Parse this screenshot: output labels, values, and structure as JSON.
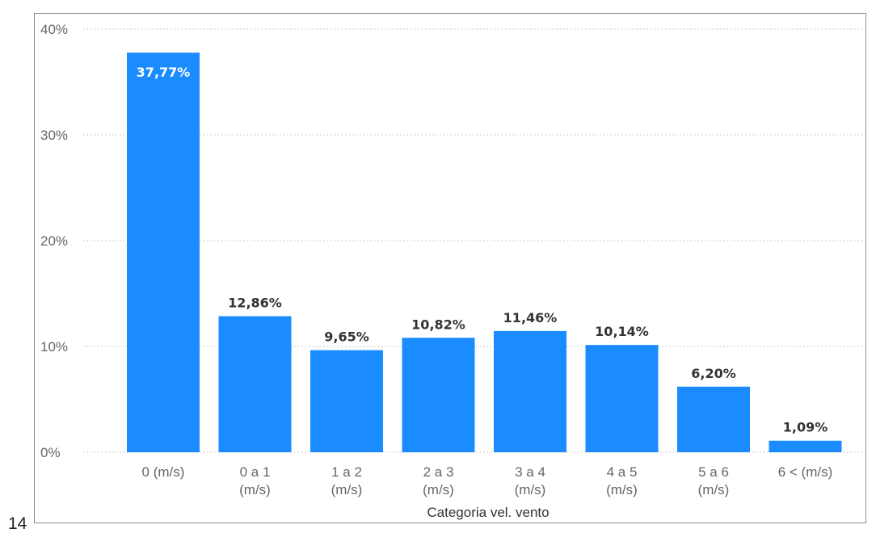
{
  "page_number": "14",
  "colors": {
    "bar": "#1a8cff",
    "grid": "#c8c8c8",
    "frame": "#8a8a8a"
  },
  "chart_data": {
    "type": "bar",
    "title": "",
    "xlabel": "Categoria vel. vento",
    "ylabel": "",
    "categories": [
      [
        "0 (m/s)"
      ],
      [
        "0 a 1",
        "(m/s)"
      ],
      [
        "1 a 2",
        "(m/s)"
      ],
      [
        "2 a 3",
        "(m/s)"
      ],
      [
        "3 a 4",
        "(m/s)"
      ],
      [
        "4 a 5",
        "(m/s)"
      ],
      [
        "5 a 6",
        "(m/s)"
      ],
      [
        "6 < (m/s)"
      ]
    ],
    "values": [
      37.77,
      12.86,
      9.65,
      10.82,
      11.46,
      10.14,
      6.2,
      1.09
    ],
    "data_labels": [
      "37,77%",
      "12,86%",
      "9,65%",
      "10,82%",
      "11,46%",
      "10,14%",
      "6,20%",
      "1,09%"
    ],
    "yticks": [
      0,
      10,
      20,
      30,
      40
    ],
    "ytick_labels": [
      "0%",
      "10%",
      "20%",
      "30%",
      "40%"
    ],
    "ylim": [
      0,
      40
    ],
    "grid": true,
    "gridline_style": "dotted",
    "legend": "none"
  }
}
